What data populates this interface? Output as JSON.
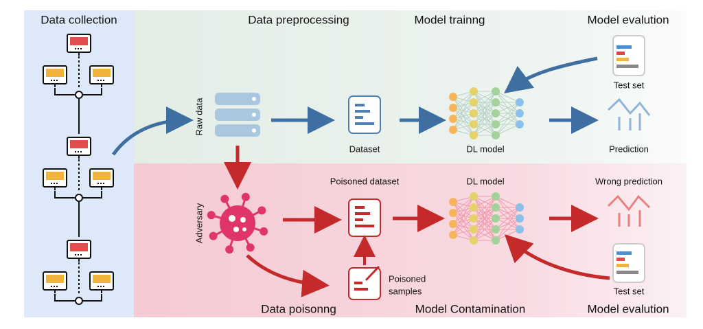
{
  "stages": {
    "top": [
      "Data collection",
      "Data preprocessing",
      "Model trainng",
      "Model evalution"
    ],
    "bottom": [
      "Data poisonng",
      "Model Contamination",
      "Model evalution"
    ]
  },
  "clean_flow": {
    "raw_data": "Raw data",
    "dataset": "Dataset",
    "model": "DL model",
    "test_set": "Test set",
    "prediction": "Prediction"
  },
  "poison_flow": {
    "adversary": "Adversary",
    "poisoned_dataset": "Poisoned dataset",
    "model": "DL model",
    "wrong_prediction": "Wrong prediction",
    "test_set": "Test set",
    "poisoned_samples": [
      "Poisoned",
      "samples"
    ]
  }
}
